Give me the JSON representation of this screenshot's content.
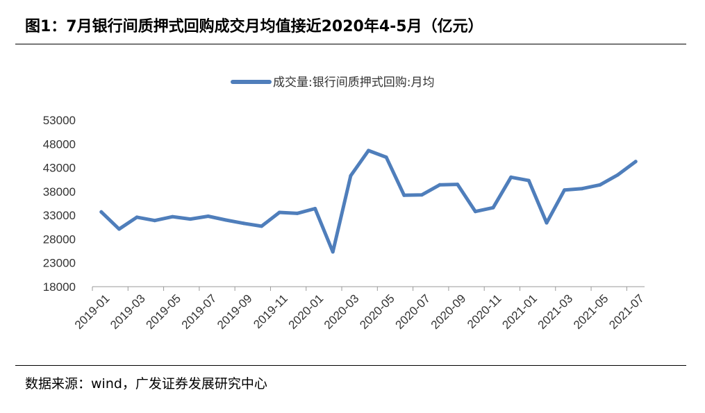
{
  "figure": {
    "title": "图1：7月银行间质押式回购成交月均值接近2020年4-5月（亿元）",
    "source": "数据来源：wind，广发证券发展研究中心"
  },
  "chart_data": {
    "type": "line",
    "legend": "top-center",
    "grid": false,
    "ylim": [
      18000,
      53000
    ],
    "yticks": [
      18000,
      23000,
      28000,
      33000,
      38000,
      43000,
      48000,
      53000
    ],
    "x": [
      "2019-01",
      "2019-02",
      "2019-03",
      "2019-04",
      "2019-05",
      "2019-06",
      "2019-07",
      "2019-08",
      "2019-09",
      "2019-10",
      "2019-11",
      "2019-12",
      "2020-01",
      "2020-02",
      "2020-03",
      "2020-04",
      "2020-05",
      "2020-06",
      "2020-07",
      "2020-08",
      "2020-09",
      "2020-10",
      "2020-11",
      "2020-12",
      "2021-01",
      "2021-02",
      "2021-03",
      "2021-04",
      "2021-05",
      "2021-06",
      "2021-07"
    ],
    "xtick_labels": [
      "2019-01",
      "2019-03",
      "2019-05",
      "2019-07",
      "2019-09",
      "2019-11",
      "2020-01",
      "2020-03",
      "2020-05",
      "2020-07",
      "2020-09",
      "2020-11",
      "2021-01",
      "2021-03",
      "2021-05",
      "2021-07"
    ],
    "series": [
      {
        "name": "成交量:银行间质押式回购:月均",
        "color": "#4F7EBB",
        "values": [
          33700,
          30100,
          32600,
          31900,
          32700,
          32200,
          32800,
          32000,
          31300,
          30700,
          33600,
          33400,
          34400,
          25300,
          41300,
          46600,
          45200,
          37200,
          37300,
          39400,
          39500,
          33800,
          34600,
          41000,
          40300,
          31400,
          38300,
          38600,
          39400,
          41500,
          44300
        ]
      }
    ]
  }
}
